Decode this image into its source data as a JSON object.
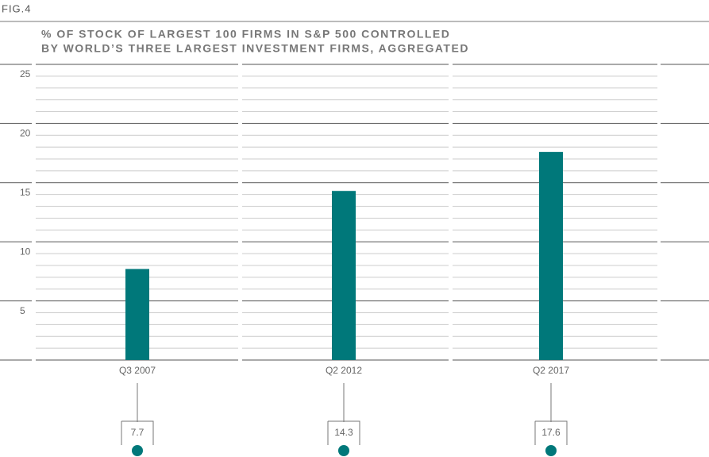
{
  "chart_data": {
    "type": "bar",
    "figure_label": "FIG.4",
    "title": "% OF STOCK OF LARGEST 100 FIRMS IN S&P 500 CONTROLLED",
    "subtitle": "BY WORLD’S THREE LARGEST INVESTMENT FIRMS, AGGREGATED",
    "categories": [
      "Q3 2007",
      "Q2 2012",
      "Q2 2017"
    ],
    "values": [
      7.7,
      14.3,
      17.6
    ],
    "color": "#00787a",
    "ylim": [
      0,
      25
    ],
    "yticks": [
      5,
      10,
      15,
      20,
      25
    ],
    "minor_yticks": [
      1,
      2,
      3,
      4,
      6,
      7,
      8,
      9,
      11,
      12,
      13,
      14,
      16,
      17,
      18,
      19,
      21,
      22,
      23,
      24
    ],
    "grid": true
  }
}
